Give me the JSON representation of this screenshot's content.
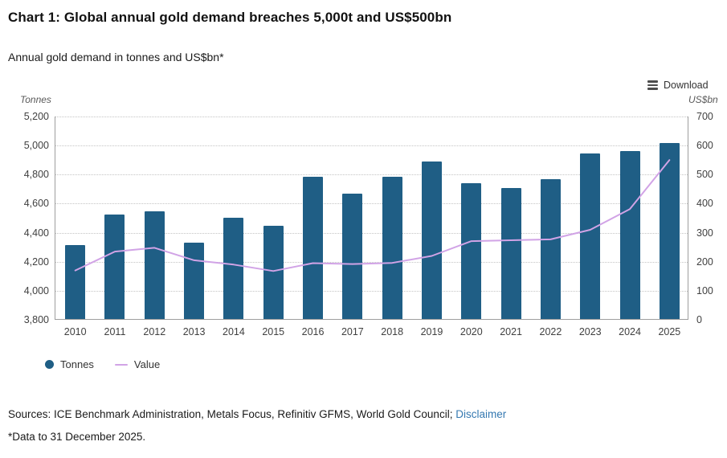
{
  "header": {
    "title": "Chart 1: Global annual gold demand breaches 5,000t and US$500bn",
    "subtitle": "Annual gold demand in tonnes and US$bn*"
  },
  "toolbar": {
    "download_label": "Download"
  },
  "chart_data": {
    "type": "bar",
    "title": "Annual gold demand in tonnes and US$bn",
    "categories": [
      "2010",
      "2011",
      "2012",
      "2013",
      "2014",
      "2015",
      "2016",
      "2017",
      "2018",
      "2019",
      "2020",
      "2021",
      "2022",
      "2023",
      "2024",
      "2025"
    ],
    "series": [
      {
        "name": "Tonnes",
        "type": "bar",
        "axis": "left",
        "color": "#1f5e85",
        "values": [
          4307,
          4517,
          4544,
          4325,
          4500,
          4442,
          4780,
          4661,
          4781,
          4885,
          4735,
          4700,
          4765,
          4940,
          4958,
          5010
        ]
      },
      {
        "name": "Value",
        "type": "line",
        "axis": "right",
        "color": "#d1a3e6",
        "values": [
          170,
          235,
          248,
          205,
          190,
          168,
          195,
          192,
          196,
          220,
          271,
          274,
          277,
          310,
          381,
          550
        ]
      }
    ],
    "left_axis": {
      "label": "Tonnes",
      "min": 3800,
      "max": 5200,
      "tick_step": 200,
      "ticks": [
        "5,200",
        "5,000",
        "4,800",
        "4,600",
        "4,400",
        "4,200",
        "4,000",
        "3,800"
      ]
    },
    "right_axis": {
      "label": "US$bn",
      "min": 0,
      "max": 700,
      "tick_step": 100,
      "ticks": [
        "700",
        "600",
        "500",
        "400",
        "300",
        "200",
        "100",
        "0"
      ]
    },
    "grid": "horizontal dotted",
    "legend_position": "bottom-left"
  },
  "legend": {
    "items": [
      {
        "label": "Tonnes",
        "marker": "circle",
        "color": "#1f5e85"
      },
      {
        "label": "Value",
        "marker": "line",
        "color": "#d1a3e6"
      }
    ]
  },
  "footer": {
    "sources_prefix": "Sources: ICE Benchmark Administration, Metals Focus, Refinitiv GFMS, World Gold Council; ",
    "disclaimer_link": "Disclaimer",
    "footnote": "*Data to 31 December 2025."
  }
}
